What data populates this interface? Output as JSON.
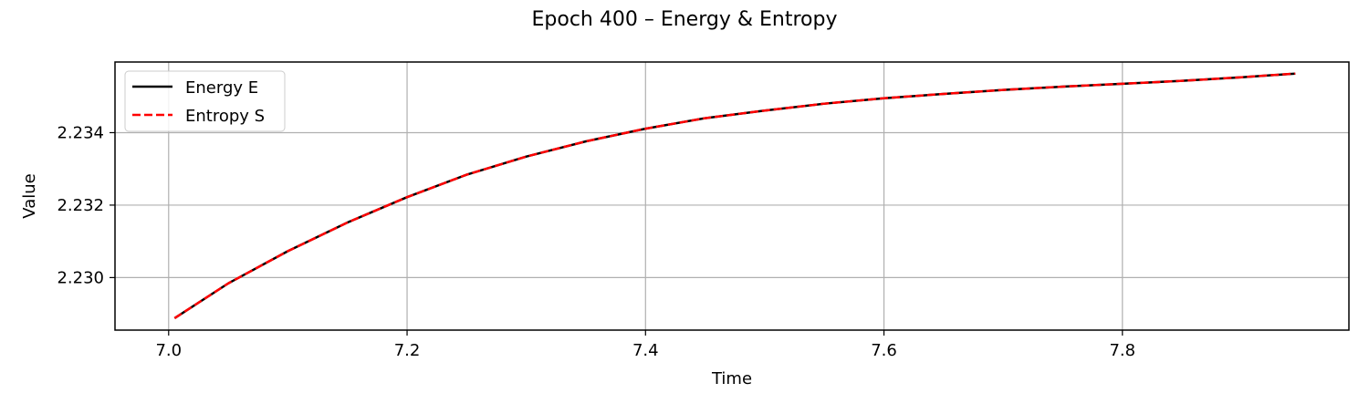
{
  "chart_data": {
    "type": "line",
    "title": "Epoch 400 – Energy & Entropy",
    "xlabel": "Time",
    "ylabel": "Value",
    "xlim": [
      6.955,
      7.99
    ],
    "ylim": [
      2.22855,
      2.23595
    ],
    "xticks": [
      7.0,
      7.2,
      7.4,
      7.6,
      7.8
    ],
    "xtick_labels": [
      "7.0",
      "7.2",
      "7.4",
      "7.6",
      "7.8"
    ],
    "yticks": [
      2.23,
      2.232,
      2.234
    ],
    "ytick_labels": [
      "2.230",
      "2.232",
      "2.234"
    ],
    "grid": true,
    "legend_position": "top-left",
    "series": [
      {
        "name": "Energy E",
        "color": "#000000",
        "style": "solid",
        "x": [
          7.005,
          7.05,
          7.1,
          7.15,
          7.2,
          7.25,
          7.3,
          7.35,
          7.4,
          7.45,
          7.5,
          7.55,
          7.6,
          7.65,
          7.7,
          7.75,
          7.8,
          7.85,
          7.9,
          7.945
        ],
        "y": [
          2.22888,
          2.22984,
          2.23073,
          2.23152,
          2.23222,
          2.23284,
          2.23334,
          2.23376,
          2.23411,
          2.2344,
          2.23461,
          2.2348,
          2.23495,
          2.23507,
          2.23518,
          2.23527,
          2.23535,
          2.23543,
          2.23553,
          2.23563
        ]
      },
      {
        "name": "Entropy S",
        "color": "#ff0000",
        "style": "dashed",
        "x": [
          7.005,
          7.05,
          7.1,
          7.15,
          7.2,
          7.25,
          7.3,
          7.35,
          7.4,
          7.45,
          7.5,
          7.55,
          7.6,
          7.65,
          7.7,
          7.75,
          7.8,
          7.85,
          7.9,
          7.945
        ],
        "y": [
          2.22888,
          2.22984,
          2.23073,
          2.23152,
          2.23222,
          2.23284,
          2.23334,
          2.23376,
          2.23411,
          2.2344,
          2.23461,
          2.2348,
          2.23495,
          2.23507,
          2.23518,
          2.23527,
          2.23535,
          2.23543,
          2.23553,
          2.23563
        ]
      }
    ]
  }
}
